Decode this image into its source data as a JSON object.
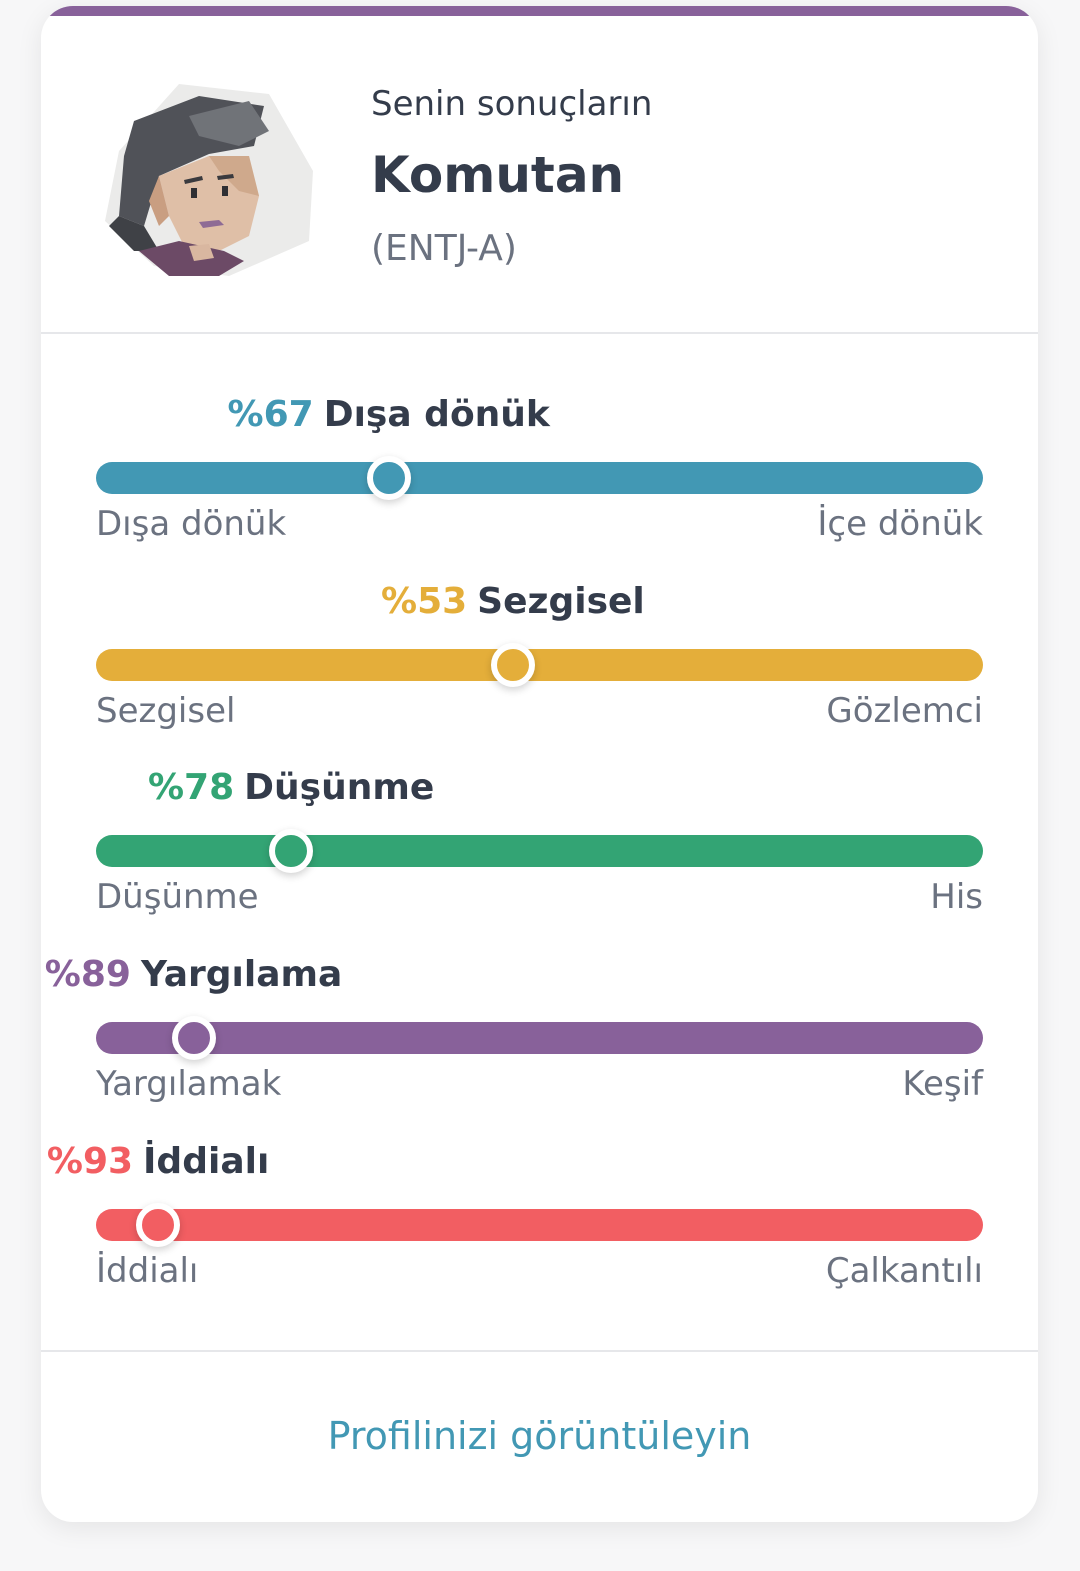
{
  "header": {
    "subtitle": "Senin sonuçların",
    "type_name": "Komutan",
    "type_code": "(ENTJ-A)"
  },
  "colors": {
    "accent": "#88619a",
    "link": "#4298b4"
  },
  "traits": [
    {
      "percent_label": "%67",
      "name": "Dışa dönük",
      "left_pole": "Dışa dönük",
      "right_pole": "İçe dönük",
      "color": "#4298b4",
      "score_percent": 67,
      "leans": "left"
    },
    {
      "percent_label": "%53",
      "name": "Sezgisel",
      "left_pole": "Sezgisel",
      "right_pole": "Gözlemci",
      "color": "#e4ae3a",
      "score_percent": 53,
      "leans": "left"
    },
    {
      "percent_label": "%78",
      "name": "Düşünme",
      "left_pole": "Düşünme",
      "right_pole": "His",
      "color": "#33a474",
      "score_percent": 78,
      "leans": "left"
    },
    {
      "percent_label": "%89",
      "name": "Yargılama",
      "left_pole": "Yargılamak",
      "right_pole": "Keşif",
      "color": "#88619a",
      "score_percent": 89,
      "leans": "left"
    },
    {
      "percent_label": "%93",
      "name": "İddialı",
      "left_pole": "İddialı",
      "right_pole": "Çalkantılı",
      "color": "#f25e62",
      "score_percent": 93,
      "leans": "left"
    }
  ],
  "footer": {
    "link_label": "Profilinizi görüntüleyin"
  }
}
